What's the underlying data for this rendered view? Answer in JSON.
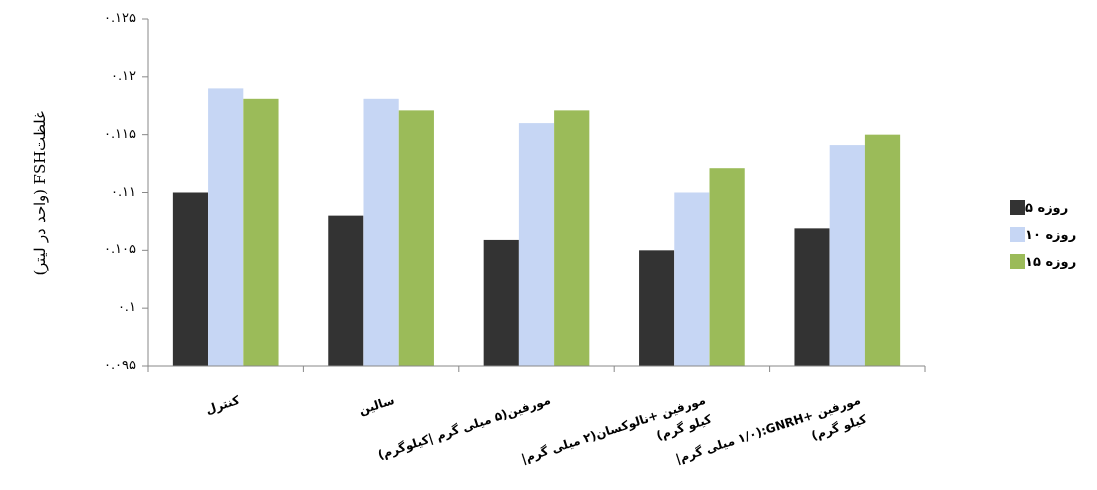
{
  "chart_data": {
    "type": "bar",
    "ylabel": "غلظتFSH (واحد در لیتر)",
    "categories": [
      "کنترل",
      "سالین",
      "مورفین(۵ میلی گرم |کیلوگرم)",
      "مورفین +نالوکسان(۲ میلی گرم| کیلو گرم)",
      "مورفین +GNRH:(۱/۰ میلی گرم| کیلو گرم)"
    ],
    "series": [
      {
        "name": "روزه ۵",
        "color": "#333333",
        "values": [
          0.11,
          0.108,
          0.1059,
          0.105,
          0.1069
        ]
      },
      {
        "name": "روزه ۱۰",
        "color": "#c6d6f4",
        "values": [
          0.119,
          0.1181,
          0.116,
          0.11,
          0.1141
        ]
      },
      {
        "name": "روزه ۱۵",
        "color": "#9bbb59",
        "values": [
          0.1181,
          0.1171,
          0.1171,
          0.1121,
          0.115
        ]
      }
    ],
    "ylim": [
      0.095,
      0.125
    ],
    "yticks": [
      {
        "value": 0.095,
        "label": "۰.۰۹۵"
      },
      {
        "value": 0.1,
        "label": "۰.۱"
      },
      {
        "value": 0.105,
        "label": "۰.۱۰۵"
      },
      {
        "value": 0.11,
        "label": "۰.۱۱"
      },
      {
        "value": 0.115,
        "label": "۰.۱۱۵"
      },
      {
        "value": 0.12,
        "label": "۰.۱۲"
      },
      {
        "value": 0.125,
        "label": "۰.۱۲۵"
      }
    ],
    "grid": false,
    "legend": "right"
  }
}
